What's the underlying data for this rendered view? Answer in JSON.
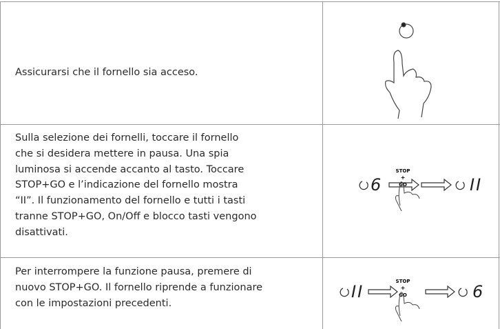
{
  "rows": [
    {
      "lines": [
        "Assicurarsi che il fornello sia acceso."
      ]
    },
    {
      "lines": [
        "Sulla selezione dei fornelli, toccare il fornello",
        "che si desidera mettere in pausa. Una spia",
        "luminosa si accende accanto al tasto. Toccare",
        "STOP+GO e l’indicazione del fornello mostra",
        "“II”. Il funzionamento del fornello e tutti i tasti",
        "tranne STOP+GO, On/Off e blocco tasti vengono",
        "disattivati."
      ],
      "diagram": {
        "from": "6",
        "key_top": "STOP",
        "key_mid": "+",
        "key_bottom": "GO",
        "to": "II"
      }
    },
    {
      "lines": [
        "Per interrompere la funzione pausa, premere di",
        "nuovo STOP+GO. Il fornello riprende a funzionare",
        "con le impostazioni precedenti."
      ],
      "diagram": {
        "from": "II",
        "key_top": "STOP",
        "key_mid": "+",
        "key_bottom": "GO",
        "to": "6"
      }
    }
  ]
}
